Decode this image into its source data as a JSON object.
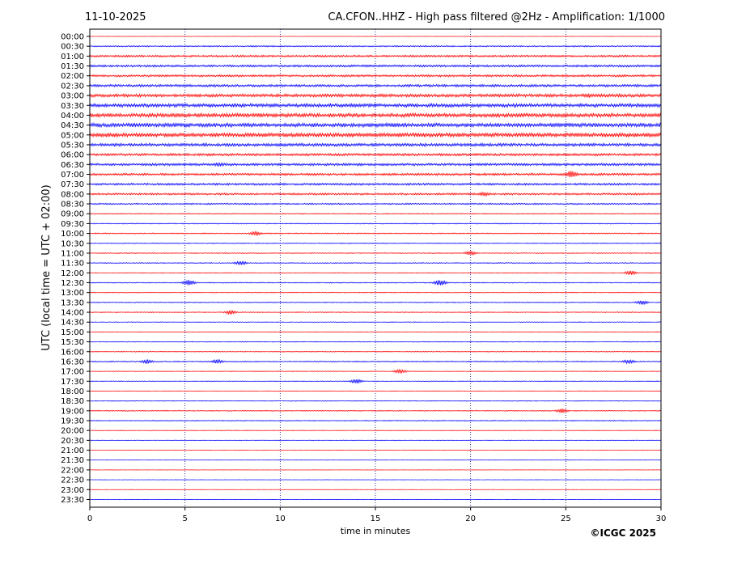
{
  "header": {
    "date": "11-10-2025",
    "title": "CA.CFON..HHZ - High pass filtered @2Hz - Amplification: 1/1000"
  },
  "footer": {
    "copyright": "©ICGC 2025"
  },
  "chart_data": {
    "type": "line",
    "title": "CA.CFON..HHZ - High pass filtered @2Hz - Amplification: 1/1000",
    "xlabel": "time in minutes",
    "ylabel": "UTC (local time = UTC + 02:00)",
    "xlim": [
      0,
      30
    ],
    "x_ticks": [
      0,
      5,
      10,
      15,
      20,
      25,
      30
    ],
    "x_gridlines": [
      5,
      10,
      15,
      20,
      25
    ],
    "grid": "vertical dotted",
    "colors": {
      "red": "#ff0000",
      "blue": "#0000ff"
    },
    "rows": [
      {
        "label": "00:00",
        "color": "red",
        "amplitude": 0.2
      },
      {
        "label": "00:30",
        "color": "blue",
        "amplitude": 0.8
      },
      {
        "label": "01:00",
        "color": "red",
        "amplitude": 1.2
      },
      {
        "label": "01:30",
        "color": "blue",
        "amplitude": 1.3
      },
      {
        "label": "02:00",
        "color": "red",
        "amplitude": 1.3
      },
      {
        "label": "02:30",
        "color": "blue",
        "amplitude": 1.5
      },
      {
        "label": "03:00",
        "color": "red",
        "amplitude": 1.9
      },
      {
        "label": "03:30",
        "color": "blue",
        "amplitude": 2.1
      },
      {
        "label": "04:00",
        "color": "red",
        "amplitude": 2.3
      },
      {
        "label": "04:30",
        "color": "blue",
        "amplitude": 2.4
      },
      {
        "label": "05:00",
        "color": "red",
        "amplitude": 2.4
      },
      {
        "label": "05:30",
        "color": "blue",
        "amplitude": 1.8
      },
      {
        "label": "06:00",
        "color": "red",
        "amplitude": 1.5
      },
      {
        "label": "06:30",
        "color": "blue",
        "amplitude": 1.5
      },
      {
        "label": "07:00",
        "color": "red",
        "amplitude": 1.4
      },
      {
        "label": "07:30",
        "color": "blue",
        "amplitude": 1.3
      },
      {
        "label": "08:00",
        "color": "red",
        "amplitude": 1.2
      },
      {
        "label": "08:30",
        "color": "blue",
        "amplitude": 0.9
      },
      {
        "label": "09:00",
        "color": "red",
        "amplitude": 0.6
      },
      {
        "label": "09:30",
        "color": "blue",
        "amplitude": 0.6
      },
      {
        "label": "10:00",
        "color": "red",
        "amplitude": 0.7
      },
      {
        "label": "10:30",
        "color": "blue",
        "amplitude": 0.6
      },
      {
        "label": "11:00",
        "color": "red",
        "amplitude": 0.6
      },
      {
        "label": "11:30",
        "color": "blue",
        "amplitude": 0.6
      },
      {
        "label": "12:00",
        "color": "red",
        "amplitude": 0.5
      },
      {
        "label": "12:30",
        "color": "blue",
        "amplitude": 0.6
      },
      {
        "label": "13:00",
        "color": "red",
        "amplitude": 0.5
      },
      {
        "label": "13:30",
        "color": "blue",
        "amplitude": 0.6
      },
      {
        "label": "14:00",
        "color": "red",
        "amplitude": 0.6
      },
      {
        "label": "14:30",
        "color": "blue",
        "amplitude": 0.4
      },
      {
        "label": "15:00",
        "color": "red",
        "amplitude": 0.4
      },
      {
        "label": "15:30",
        "color": "blue",
        "amplitude": 0.5
      },
      {
        "label": "16:00",
        "color": "red",
        "amplitude": 0.5
      },
      {
        "label": "16:30",
        "color": "blue",
        "amplitude": 0.7
      },
      {
        "label": "17:00",
        "color": "red",
        "amplitude": 0.5
      },
      {
        "label": "17:30",
        "color": "blue",
        "amplitude": 0.5
      },
      {
        "label": "18:00",
        "color": "red",
        "amplitude": 0.4
      },
      {
        "label": "18:30",
        "color": "blue",
        "amplitude": 0.5
      },
      {
        "label": "19:00",
        "color": "red",
        "amplitude": 0.6
      },
      {
        "label": "19:30",
        "color": "blue",
        "amplitude": 0.6
      },
      {
        "label": "20:00",
        "color": "red",
        "amplitude": 0.4
      },
      {
        "label": "20:30",
        "color": "blue",
        "amplitude": 0.4
      },
      {
        "label": "21:00",
        "color": "red",
        "amplitude": 0.3
      },
      {
        "label": "21:30",
        "color": "blue",
        "amplitude": 0.2
      },
      {
        "label": "22:00",
        "color": "red",
        "amplitude": 0.2
      },
      {
        "label": "22:30",
        "color": "blue",
        "amplitude": 0.3
      },
      {
        "label": "23:00",
        "color": "red",
        "amplitude": 0.2
      },
      {
        "label": "23:30",
        "color": "blue",
        "amplitude": 0.2
      }
    ],
    "events": [
      {
        "row": "07:00",
        "minute": 25.3,
        "amplitude": 5
      },
      {
        "row": "04:30",
        "minute": 16.0,
        "amplitude": 3
      },
      {
        "row": "03:00",
        "minute": 26.2,
        "amplitude": 3
      },
      {
        "row": "06:30",
        "minute": 6.8,
        "amplitude": 3
      },
      {
        "row": "08:00",
        "minute": 20.7,
        "amplitude": 3
      },
      {
        "row": "14:00",
        "minute": 7.4,
        "amplitude": 3
      },
      {
        "row": "16:30",
        "minute": 3.0,
        "amplitude": 3
      },
      {
        "row": "16:30",
        "minute": 6.7,
        "amplitude": 3
      },
      {
        "row": "16:30",
        "minute": 28.3,
        "amplitude": 3
      },
      {
        "row": "17:30",
        "minute": 14.0,
        "amplitude": 3
      },
      {
        "row": "12:30",
        "minute": 5.2,
        "amplitude": 4
      },
      {
        "row": "12:30",
        "minute": 18.4,
        "amplitude": 4
      },
      {
        "row": "12:00",
        "minute": 28.4,
        "amplitude": 3
      },
      {
        "row": "11:30",
        "minute": 7.9,
        "amplitude": 3
      },
      {
        "row": "10:00",
        "minute": 8.7,
        "amplitude": 3
      },
      {
        "row": "11:00",
        "minute": 20.0,
        "amplitude": 3
      },
      {
        "row": "13:30",
        "minute": 29.0,
        "amplitude": 3
      },
      {
        "row": "17:00",
        "minute": 16.3,
        "amplitude": 3
      },
      {
        "row": "19:00",
        "minute": 24.8,
        "amplitude": 3
      }
    ]
  }
}
